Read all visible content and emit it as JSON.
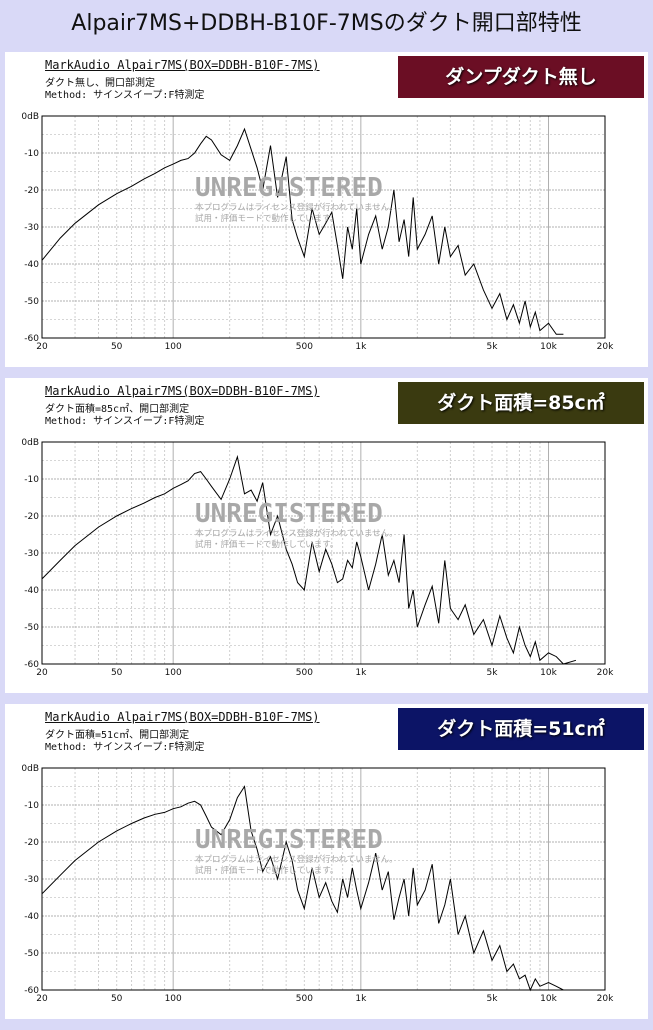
{
  "page": {
    "title": "Alpair7MS+DDBH-B10F-7MSのダクト開口部特性",
    "background": "#d9d9f7"
  },
  "watermark": {
    "line1": "UNREGISTERED",
    "line2": "本プログラムはライセンス登録が行われていません。",
    "line3": "試用・評価モードで動作しています。"
  },
  "panels": [
    {
      "title": "MarkAudio Alpair7MS(BOX=DDBH-B10F-7MS)",
      "subtitle": "ダクト無し、開口部測定",
      "method": "Method: サインスイープ:F特測定",
      "badge": "ダンプダクト無し",
      "badge_color": "#6b0e24"
    },
    {
      "title": "MarkAudio Alpair7MS(BOX=DDBH-B10F-7MS)",
      "subtitle": "ダクト面積=85c㎡、開口部測定",
      "method": "Method: サインスイープ:F特測定",
      "badge": "ダクト面積=85c㎡",
      "badge_color": "#3a3a10"
    },
    {
      "title": "MarkAudio Alpair7MS(BOX=DDBH-B10F-7MS)",
      "subtitle": "ダクト面積=51c㎡、開口部測定",
      "method": "Method: サインスイープ:F特測定",
      "badge": "ダクト面積=51c㎡",
      "badge_color": "#0c1466"
    }
  ],
  "chart_data": [
    {
      "type": "line",
      "x_scale": "log",
      "xlim": [
        20,
        20000
      ],
      "ylim": [
        -60,
        0
      ],
      "x_tick_labels": [
        "20",
        "50",
        "100",
        "500",
        "1k",
        "5k",
        "10k",
        "20k"
      ],
      "y_tick_labels": [
        "0dB",
        "-10",
        "-20",
        "-30",
        "-40",
        "-50",
        "-60"
      ],
      "grid": true,
      "series": [
        {
          "x": [
            20,
            25,
            30,
            40,
            50,
            60,
            70,
            80,
            90,
            100,
            110,
            120,
            130,
            140,
            150,
            160,
            180,
            200,
            220,
            240,
            260,
            280,
            300,
            330,
            360,
            400,
            430,
            460,
            500,
            550,
            600,
            650,
            700,
            750,
            800,
            850,
            900,
            950,
            1000,
            1100,
            1200,
            1300,
            1400,
            1500,
            1600,
            1700,
            1800,
            1900,
            2000,
            2200,
            2400,
            2600,
            2800,
            3000,
            3300,
            3600,
            4000,
            4500,
            5000,
            5500,
            6000,
            6500,
            7000,
            7500,
            8000,
            8500,
            9000,
            10000,
            11000,
            12000
          ],
          "y": [
            -39,
            -33,
            -29,
            -24,
            -21,
            -19,
            -17,
            -15.5,
            -14,
            -13,
            -12,
            -11.5,
            -10,
            -7.5,
            -5.5,
            -6.5,
            -10.5,
            -12,
            -8,
            -3.5,
            -9,
            -14,
            -20,
            -8,
            -22,
            -11,
            -28,
            -33,
            -38,
            -25,
            -32,
            -29,
            -26,
            -35,
            -44,
            -30,
            -36,
            -25,
            -40,
            -32,
            -27,
            -36,
            -30,
            -20,
            -34,
            -28,
            -38,
            -22,
            -36,
            -32,
            -27,
            -40,
            -30,
            -38,
            -35,
            -43,
            -40,
            -47,
            -52,
            -48,
            -55,
            -51,
            -56,
            -50,
            -57,
            -53,
            -58,
            -56,
            -59,
            -59
          ]
        }
      ]
    },
    {
      "type": "line",
      "x_scale": "log",
      "xlim": [
        20,
        20000
      ],
      "ylim": [
        -60,
        0
      ],
      "x_tick_labels": [
        "20",
        "50",
        "100",
        "500",
        "1k",
        "5k",
        "10k",
        "20k"
      ],
      "y_tick_labels": [
        "0dB",
        "-10",
        "-20",
        "-30",
        "-40",
        "-50",
        "-60"
      ],
      "grid": true,
      "series": [
        {
          "x": [
            20,
            25,
            30,
            40,
            50,
            60,
            70,
            80,
            90,
            100,
            110,
            120,
            130,
            140,
            150,
            160,
            180,
            200,
            220,
            240,
            260,
            280,
            300,
            330,
            360,
            400,
            430,
            460,
            500,
            550,
            600,
            650,
            700,
            750,
            800,
            850,
            900,
            950,
            1000,
            1100,
            1200,
            1300,
            1400,
            1500,
            1600,
            1700,
            1800,
            1900,
            2000,
            2200,
            2400,
            2600,
            2800,
            3000,
            3300,
            3600,
            4000,
            4500,
            5000,
            5500,
            6000,
            6500,
            7000,
            7500,
            8000,
            8500,
            9000,
            10000,
            11000,
            12000,
            14000
          ],
          "y": [
            -37,
            -32,
            -28,
            -23,
            -20,
            -18,
            -16.5,
            -15,
            -14,
            -12.5,
            -11.5,
            -10.5,
            -8.5,
            -8,
            -10,
            -12,
            -15.5,
            -10,
            -4,
            -14,
            -13,
            -16,
            -11,
            -25,
            -20,
            -29,
            -33,
            -38,
            -40,
            -27,
            -35,
            -29,
            -33,
            -38,
            -37,
            -32,
            -34,
            -27,
            -31,
            -40,
            -33,
            -25,
            -36,
            -32,
            -38,
            -25,
            -45,
            -40,
            -50,
            -44,
            -39,
            -49,
            -32,
            -45,
            -48,
            -44,
            -52,
            -48,
            -55,
            -47,
            -53,
            -57,
            -50,
            -55,
            -58,
            -54,
            -59,
            -57,
            -58,
            -60,
            -59
          ]
        }
      ]
    },
    {
      "type": "line",
      "x_scale": "log",
      "xlim": [
        20,
        20000
      ],
      "ylim": [
        -60,
        0
      ],
      "x_tick_labels": [
        "20",
        "50",
        "100",
        "500",
        "1k",
        "5k",
        "10k",
        "20k"
      ],
      "y_tick_labels": [
        "0dB",
        "-10",
        "-20",
        "-30",
        "-40",
        "-50",
        "-60"
      ],
      "grid": true,
      "series": [
        {
          "x": [
            20,
            25,
            30,
            40,
            50,
            60,
            70,
            80,
            90,
            100,
            110,
            120,
            130,
            140,
            150,
            160,
            180,
            200,
            220,
            240,
            260,
            280,
            300,
            330,
            360,
            400,
            430,
            460,
            500,
            550,
            600,
            650,
            700,
            750,
            800,
            850,
            900,
            950,
            1000,
            1100,
            1200,
            1300,
            1400,
            1500,
            1600,
            1700,
            1800,
            1900,
            2000,
            2200,
            2400,
            2600,
            2800,
            3000,
            3300,
            3600,
            4000,
            4500,
            5000,
            5500,
            6000,
            6500,
            7000,
            7500,
            8000,
            8500,
            9000,
            10000,
            11000,
            12000
          ],
          "y": [
            -34,
            -29,
            -25,
            -20,
            -17,
            -15,
            -13.5,
            -12.5,
            -12,
            -11,
            -10.5,
            -9.5,
            -9,
            -10,
            -13,
            -16,
            -18,
            -14,
            -8,
            -5,
            -17,
            -22,
            -28,
            -24,
            -30,
            -20,
            -25,
            -33,
            -38,
            -27,
            -35,
            -31,
            -36,
            -39,
            -30,
            -35,
            -27,
            -33,
            -38,
            -31,
            -23,
            -33,
            -28,
            -41,
            -35,
            -30,
            -40,
            -27,
            -37,
            -33,
            -26,
            -42,
            -37,
            -30,
            -45,
            -40,
            -50,
            -44,
            -52,
            -48,
            -55,
            -53,
            -57,
            -56,
            -60,
            -57,
            -59,
            -58,
            -59,
            -60
          ]
        }
      ]
    }
  ]
}
